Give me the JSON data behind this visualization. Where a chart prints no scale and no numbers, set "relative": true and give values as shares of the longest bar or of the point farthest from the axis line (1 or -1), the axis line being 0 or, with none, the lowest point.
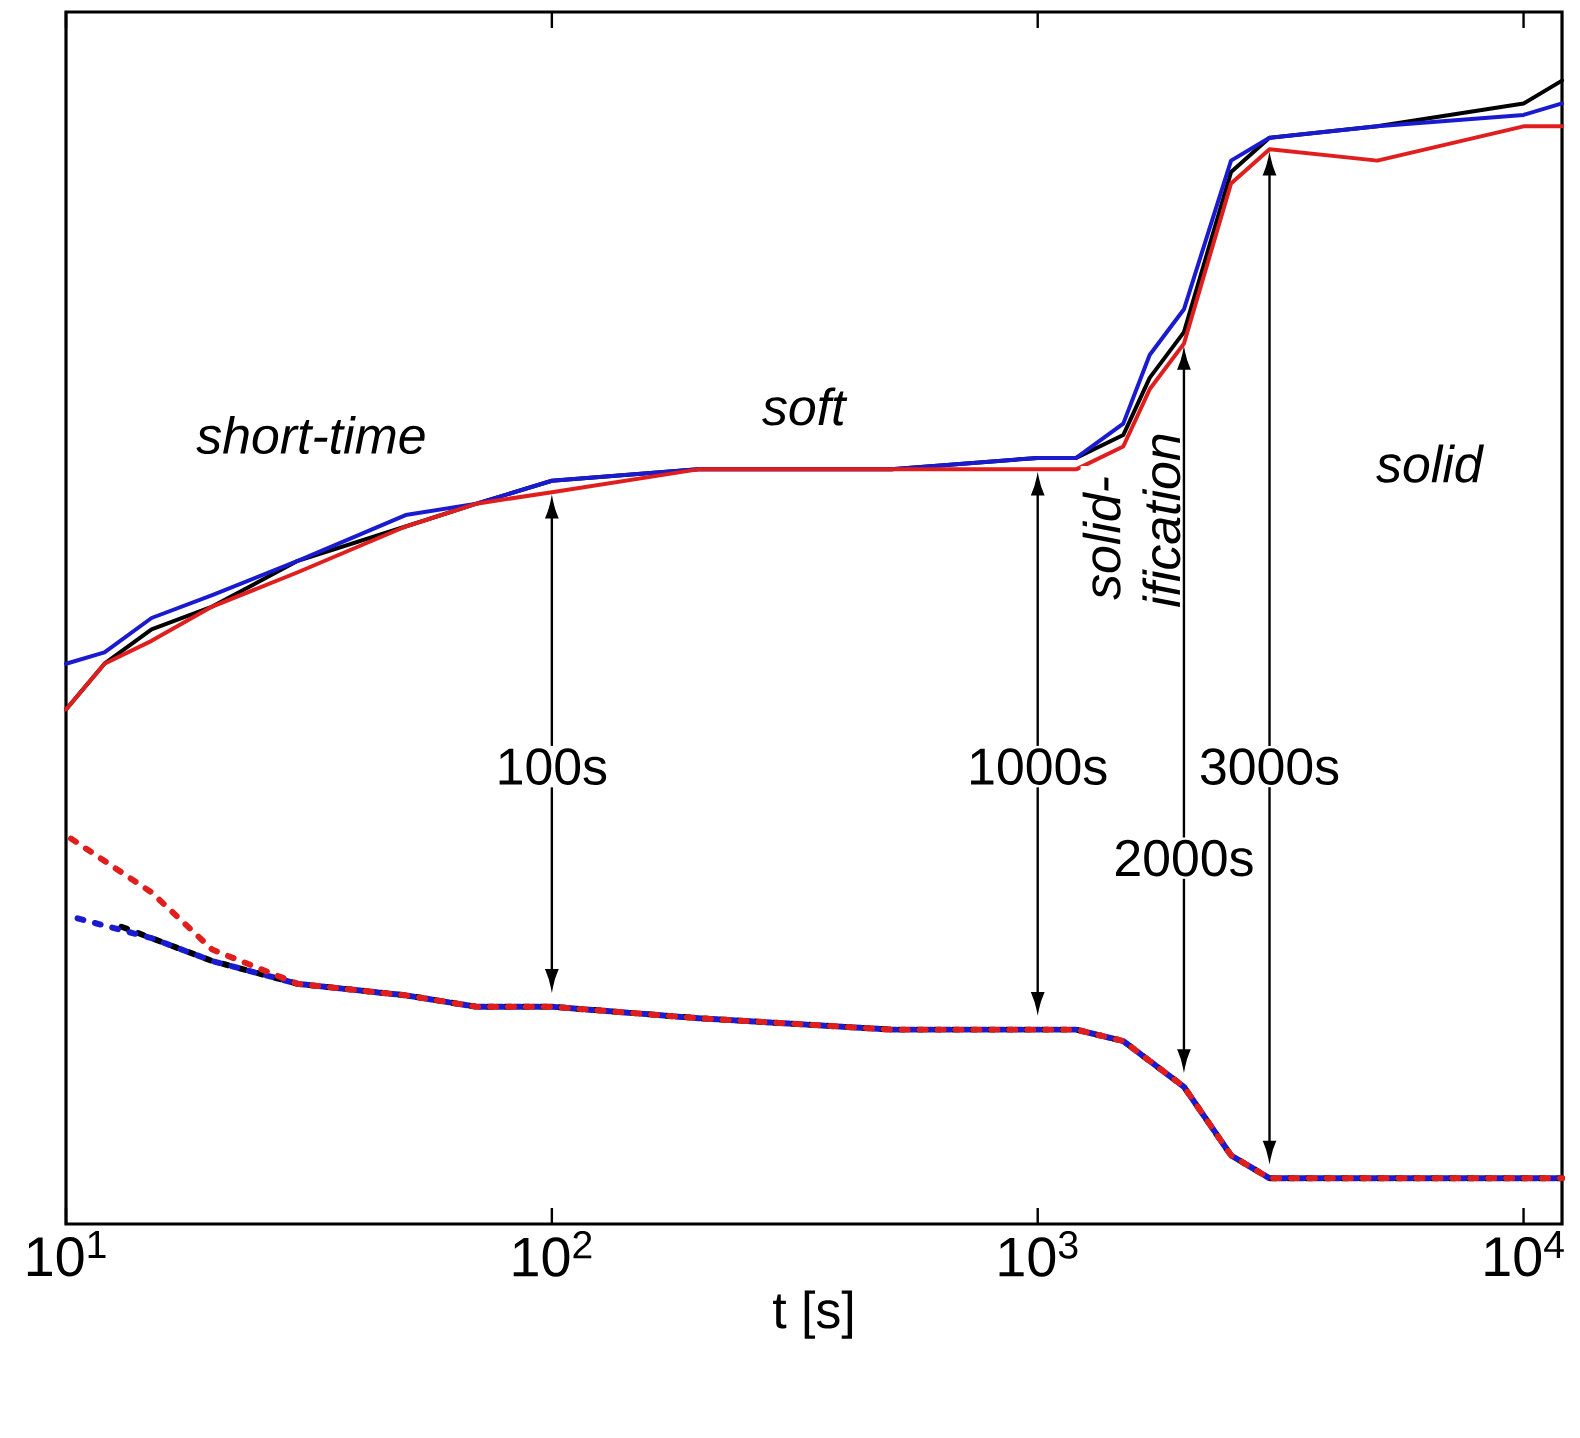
{
  "chart_data": {
    "type": "line",
    "relative": true,
    "log": "x",
    "tick_labels": "x",
    "xlabel": "t  [s]",
    "xlim": [
      10,
      12000
    ],
    "xticks": [
      {
        "value": 10,
        "label": "10$^{1}$"
      },
      {
        "value": 100,
        "label": "10$^{2}$"
      },
      {
        "value": 1000,
        "label": "10$^{3}$"
      },
      {
        "value": 10000,
        "label": "10$^{4}$"
      }
    ],
    "series": [
      {
        "color": "#000000",
        "line_style": "solid",
        "x": [
          10,
          12,
          15,
          20,
          30,
          50,
          70,
          100,
          200,
          500,
          1000,
          1200,
          1500,
          1700,
          2000,
          2500,
          3000,
          5000,
          10000,
          12000
        ],
        "values": [
          0.45,
          0.49,
          0.52,
          0.54,
          0.58,
          0.61,
          0.63,
          0.65,
          0.66,
          0.66,
          0.67,
          0.67,
          0.69,
          0.74,
          0.78,
          0.92,
          0.95,
          0.96,
          0.98,
          1.0
        ]
      },
      {
        "color": "#1a1ad0",
        "line_style": "solid",
        "x": [
          10,
          12,
          15,
          20,
          30,
          50,
          70,
          100,
          200,
          500,
          1000,
          1200,
          1500,
          1700,
          2000,
          2500,
          3000,
          5000,
          10000,
          12000
        ],
        "values": [
          0.49,
          0.5,
          0.53,
          0.55,
          0.58,
          0.62,
          0.63,
          0.65,
          0.66,
          0.66,
          0.67,
          0.67,
          0.7,
          0.76,
          0.8,
          0.93,
          0.95,
          0.96,
          0.97,
          0.98
        ]
      },
      {
        "color": "#e01e1e",
        "line_style": "solid",
        "x": [
          10,
          12,
          15,
          20,
          30,
          50,
          70,
          100,
          200,
          500,
          1000,
          1200,
          1500,
          1700,
          2000,
          2500,
          3000,
          5000,
          10000,
          12000
        ],
        "values": [
          0.45,
          0.49,
          0.51,
          0.54,
          0.57,
          0.61,
          0.63,
          0.64,
          0.66,
          0.66,
          0.66,
          0.66,
          0.68,
          0.73,
          0.77,
          0.91,
          0.94,
          0.93,
          0.96,
          0.96
        ]
      },
      {
        "color": "#000000",
        "line_style": "dotted",
        "x": [
          13,
          15,
          20,
          30,
          50,
          70,
          100,
          200,
          500,
          1000,
          1200,
          1500,
          2000,
          2500,
          3000,
          5000,
          12000
        ],
        "values": [
          0.26,
          0.25,
          0.23,
          0.21,
          0.2,
          0.19,
          0.19,
          0.18,
          0.17,
          0.17,
          0.17,
          0.16,
          0.12,
          0.06,
          0.04,
          0.04,
          0.04
        ]
      },
      {
        "color": "#1a1ad0",
        "line_style": "dotted",
        "x": [
          10,
          15,
          20,
          30,
          50,
          70,
          100,
          200,
          500,
          1000,
          1200,
          1500,
          2000,
          2500,
          3000,
          5000,
          12000
        ],
        "values": [
          0.27,
          0.25,
          0.23,
          0.21,
          0.2,
          0.19,
          0.19,
          0.18,
          0.17,
          0.17,
          0.17,
          0.16,
          0.12,
          0.06,
          0.04,
          0.04,
          0.04
        ]
      },
      {
        "color": "#e01e1e",
        "line_style": "dotted",
        "x": [
          10,
          15,
          20,
          30,
          50,
          70,
          100,
          200,
          500,
          1000,
          1200,
          1500,
          2000,
          2500,
          3000,
          5000,
          12000
        ],
        "values": [
          0.34,
          0.29,
          0.24,
          0.21,
          0.2,
          0.19,
          0.19,
          0.18,
          0.17,
          0.17,
          0.17,
          0.16,
          0.12,
          0.06,
          0.04,
          0.04,
          0.04
        ]
      }
    ],
    "annotations": [
      "short-time",
      "soft",
      "solid-ification",
      "solid",
      "100s",
      "1000s",
      "2000s",
      "3000s"
    ]
  }
}
